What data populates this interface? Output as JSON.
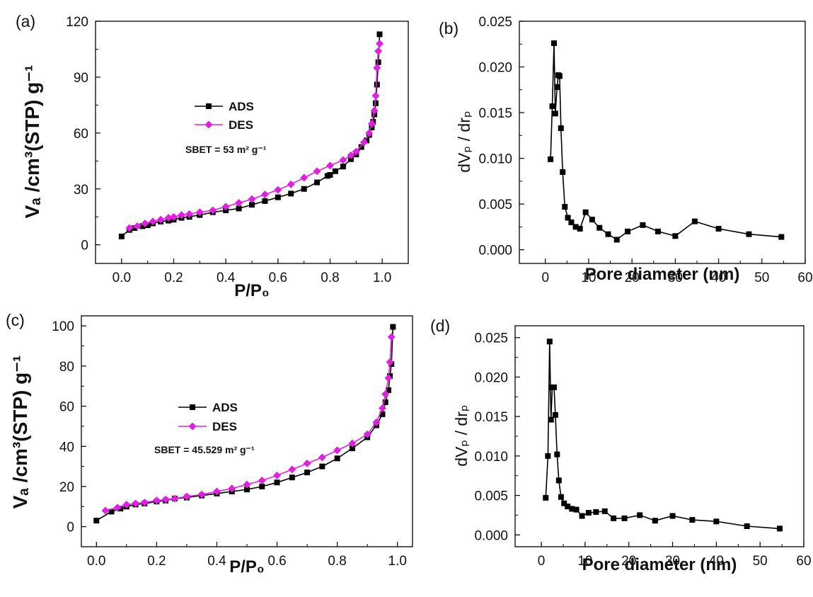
{
  "chart_data": [
    {
      "panel_label": "(a)",
      "type": "line",
      "xlabel": "P/P₀",
      "ylabel": "Vₐ /cm³(STP) g⁻¹",
      "xlim": [
        -0.1,
        1.1
      ],
      "ylim": [
        -10,
        120
      ],
      "xticks": [
        "0.0",
        "0.2",
        "0.4",
        "0.6",
        "0.8",
        "1.0"
      ],
      "yticks": [
        "0",
        "30",
        "60",
        "90",
        "120"
      ],
      "legend_position": "center-left",
      "annotation": "SBET = 53 m² g⁻¹",
      "series": [
        {
          "name": "ADS",
          "color": "#000000",
          "marker": "square",
          "x": [
            0.0,
            0.03,
            0.05,
            0.08,
            0.1,
            0.12,
            0.15,
            0.18,
            0.2,
            0.23,
            0.26,
            0.3,
            0.35,
            0.4,
            0.45,
            0.5,
            0.55,
            0.6,
            0.65,
            0.7,
            0.75,
            0.79,
            0.8,
            0.82,
            0.85,
            0.88,
            0.9,
            0.92,
            0.94,
            0.95,
            0.96,
            0.965,
            0.97,
            0.975,
            0.98,
            0.985,
            0.99
          ],
          "y": [
            4.5,
            8,
            9,
            10,
            10.5,
            11.5,
            12.5,
            13,
            13.5,
            14.5,
            15,
            16,
            17.5,
            18.5,
            19.5,
            21.5,
            23.5,
            25.5,
            27.5,
            30,
            33.5,
            37,
            37.5,
            39.5,
            42,
            46,
            48.5,
            52.5,
            56,
            59,
            63,
            66,
            70,
            76,
            86,
            98,
            113
          ]
        },
        {
          "name": "DES",
          "color": "#e020e0",
          "marker": "diamond",
          "x": [
            0.03,
            0.06,
            0.09,
            0.12,
            0.15,
            0.18,
            0.2,
            0.23,
            0.26,
            0.3,
            0.35,
            0.4,
            0.45,
            0.5,
            0.55,
            0.6,
            0.65,
            0.7,
            0.75,
            0.8,
            0.85,
            0.88,
            0.9,
            0.93,
            0.95,
            0.96,
            0.97,
            0.975,
            0.98,
            0.985,
            0.99
          ],
          "y": [
            9,
            10,
            11.5,
            12.5,
            13.5,
            14.5,
            15,
            16,
            16.5,
            17.5,
            18.5,
            20.5,
            22.5,
            24.5,
            27,
            29.5,
            32.5,
            36,
            39.5,
            42.5,
            45.5,
            48,
            50,
            55,
            60,
            65,
            72,
            80,
            95,
            104,
            108
          ]
        }
      ]
    },
    {
      "panel_label": "(b)",
      "type": "line",
      "xlabel": "Pore diameter (nm)",
      "ylabel": "dVₚ / drₚ",
      "xlim": [
        -6,
        60
      ],
      "ylim": [
        -0.0015,
        0.025
      ],
      "xticks": [
        "0",
        "10",
        "20",
        "30",
        "40",
        "50",
        "60"
      ],
      "yticks": [
        "0.000",
        "0.005",
        "0.010",
        "0.015",
        "0.020",
        "0.025"
      ],
      "series": [
        {
          "name": "",
          "color": "#000000",
          "marker": "square",
          "x": [
            1.2,
            1.6,
            2.0,
            2.3,
            2.7,
            3.0,
            3.3,
            3.6,
            4.0,
            4.5,
            5.2,
            6.0,
            7.0,
            8.0,
            9.3,
            10.8,
            12.5,
            14.5,
            16.5,
            19.0,
            22.5,
            26.0,
            30.0,
            34.5,
            40.0,
            47.0,
            54.5
          ],
          "y": [
            0.0099,
            0.0157,
            0.0226,
            0.0149,
            0.0178,
            0.0191,
            0.019,
            0.0133,
            0.0085,
            0.0047,
            0.0035,
            0.003,
            0.0025,
            0.0023,
            0.0041,
            0.0033,
            0.0024,
            0.0017,
            0.0011,
            0.002,
            0.0027,
            0.002,
            0.0015,
            0.0031,
            0.0023,
            0.0017,
            0.0014
          ]
        }
      ]
    },
    {
      "panel_label": "(c)",
      "type": "line",
      "xlabel": "P/P₀",
      "ylabel": "Vₐ /cm³(STP) g⁻¹",
      "xlim": [
        -0.05,
        1.05
      ],
      "ylim": [
        -10,
        105
      ],
      "xticks": [
        "0.0",
        "0.2",
        "0.4",
        "0.6",
        "0.8",
        "1.0"
      ],
      "yticks": [
        "0",
        "20",
        "40",
        "60",
        "80",
        "100"
      ],
      "legend_position": "center-left",
      "annotation": "SBET = 45.529 m² g⁻¹",
      "series": [
        {
          "name": "ADS",
          "color": "#000000",
          "marker": "square",
          "x": [
            0.0,
            0.05,
            0.08,
            0.1,
            0.13,
            0.16,
            0.2,
            0.23,
            0.26,
            0.3,
            0.35,
            0.4,
            0.45,
            0.5,
            0.55,
            0.6,
            0.65,
            0.7,
            0.75,
            0.8,
            0.85,
            0.9,
            0.93,
            0.95,
            0.96,
            0.97,
            0.975,
            0.98,
            0.985
          ],
          "y": [
            3,
            7.5,
            9,
            10,
            11,
            11.5,
            12.5,
            13,
            14,
            14.5,
            15.5,
            16.5,
            17.5,
            18.5,
            20,
            22,
            24.5,
            27,
            30,
            34,
            39,
            44.5,
            50.5,
            56,
            62,
            68,
            75,
            81,
            99.5
          ]
        },
        {
          "name": "DES",
          "color": "#e020e0",
          "marker": "diamond",
          "x": [
            0.03,
            0.07,
            0.1,
            0.13,
            0.16,
            0.2,
            0.23,
            0.26,
            0.3,
            0.35,
            0.4,
            0.45,
            0.5,
            0.55,
            0.6,
            0.65,
            0.7,
            0.75,
            0.8,
            0.85,
            0.9,
            0.93,
            0.95,
            0.96,
            0.97,
            0.975,
            0.98
          ],
          "y": [
            8,
            9.5,
            11,
            11.5,
            12,
            13,
            13.5,
            14,
            15,
            16,
            17.5,
            19,
            21,
            23,
            25.5,
            28.5,
            31.5,
            34.5,
            38,
            41.5,
            46,
            52,
            59,
            66,
            74,
            82,
            94.5
          ]
        }
      ]
    },
    {
      "panel_label": "(d)",
      "type": "line",
      "xlabel": "Pore diameter (nm)",
      "ylabel": "dVₚ / drₚ",
      "xlim": [
        -6,
        60
      ],
      "ylim": [
        -0.0015,
        0.0265
      ],
      "xticks": [
        "0",
        "10",
        "20",
        "30",
        "40",
        "50",
        "60"
      ],
      "yticks": [
        "0.000",
        "0.005",
        "0.010",
        "0.015",
        "0.020",
        "0.025"
      ],
      "series": [
        {
          "name": "",
          "color": "#000000",
          "marker": "square",
          "x": [
            1.0,
            1.5,
            1.9,
            2.2,
            2.5,
            2.9,
            3.2,
            3.6,
            4.0,
            4.5,
            5.2,
            6.0,
            7.0,
            8.0,
            9.3,
            10.8,
            12.5,
            14.5,
            16.5,
            19.0,
            22.5,
            26.0,
            30.0,
            34.5,
            40.0,
            47.0,
            54.5
          ],
          "y": [
            0.0047,
            0.01,
            0.0245,
            0.0146,
            0.0187,
            0.0187,
            0.0152,
            0.0102,
            0.0069,
            0.0048,
            0.004,
            0.0036,
            0.0033,
            0.0032,
            0.0024,
            0.0028,
            0.0029,
            0.003,
            0.0021,
            0.0021,
            0.0025,
            0.0018,
            0.0024,
            0.0019,
            0.0017,
            0.0011,
            0.0008
          ]
        }
      ]
    }
  ]
}
